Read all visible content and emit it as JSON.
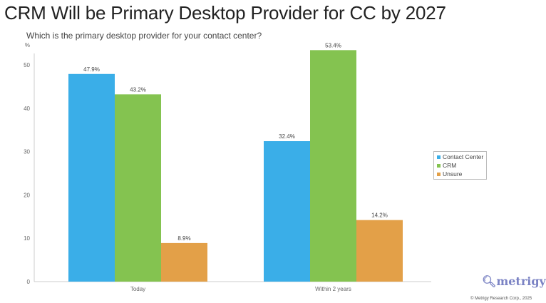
{
  "title": "CRM Will be Primary Desktop Provider for CC by 2027",
  "subtitle": "Which is the primary desktop provider for your contact center?",
  "logo": "metrigy",
  "copyright": "© Metrigy Research Corp., 2025",
  "chart_data": {
    "type": "bar",
    "title": "CRM Will be Primary Desktop Provider for CC by 2027",
    "ylabel": "%",
    "ylim": [
      0,
      55
    ],
    "yticks": [
      0,
      10,
      20,
      30,
      40,
      50
    ],
    "categories": [
      "Today",
      "Within 2 years"
    ],
    "series": [
      {
        "name": "Contact Center",
        "color": "#3aaee8",
        "values": [
          47.9,
          32.4
        ],
        "labels": [
          "47.9%",
          "32.4%"
        ]
      },
      {
        "name": "CRM",
        "color": "#84c350",
        "values": [
          43.2,
          53.4
        ],
        "labels": [
          "43.2%",
          "53.4%"
        ]
      },
      {
        "name": "Unsure",
        "color": "#e3a048",
        "values": [
          8.9,
          14.2
        ],
        "labels": [
          "8.9%",
          "14.2%"
        ]
      }
    ],
    "legend": "right"
  }
}
